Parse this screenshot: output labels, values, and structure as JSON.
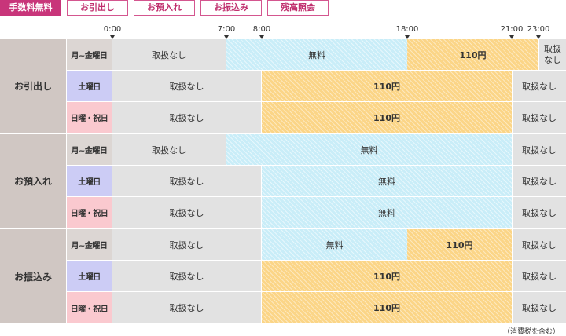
{
  "tabs": [
    {
      "label": "手数料無料",
      "active": true
    },
    {
      "label": "お引出し",
      "active": false
    },
    {
      "label": "お預入れ",
      "active": false
    },
    {
      "label": "お振込み",
      "active": false
    },
    {
      "label": "残高照会",
      "active": false
    }
  ],
  "timeline": [
    "0:00",
    "7:00",
    "8:00",
    "18:00",
    "21:00",
    "23:00"
  ],
  "groups": [
    {
      "label": "お引出し",
      "rows": [
        {
          "day": "月~金曜日",
          "type": "weekday",
          "segments": [
            {
              "text": "取扱なし",
              "kind": "none"
            },
            {
              "text": "無料",
              "kind": "free"
            },
            {
              "text": "110円",
              "kind": "fee"
            },
            {
              "text": "取扱なし",
              "kind": "none"
            }
          ]
        },
        {
          "day": "土曜日",
          "type": "sat",
          "segments": [
            {
              "text": "取扱なし",
              "kind": "none"
            },
            {
              "text": "110円",
              "kind": "fee"
            },
            {
              "text": "取扱なし",
              "kind": "none"
            }
          ]
        },
        {
          "day": "日曜・祝日",
          "type": "hol",
          "segments": [
            {
              "text": "取扱なし",
              "kind": "none"
            },
            {
              "text": "110円",
              "kind": "fee"
            },
            {
              "text": "取扱なし",
              "kind": "none"
            }
          ]
        }
      ]
    },
    {
      "label": "お預入れ",
      "rows": [
        {
          "day": "月~金曜日",
          "type": "weekday",
          "segments": [
            {
              "text": "取扱なし",
              "kind": "none"
            },
            {
              "text": "無料",
              "kind": "free"
            },
            {
              "text": "取扱なし",
              "kind": "none"
            }
          ]
        },
        {
          "day": "土曜日",
          "type": "sat",
          "segments": [
            {
              "text": "取扱なし",
              "kind": "none"
            },
            {
              "text": "無料",
              "kind": "free"
            },
            {
              "text": "取扱なし",
              "kind": "none"
            }
          ]
        },
        {
          "day": "日曜・祝日",
          "type": "hol",
          "segments": [
            {
              "text": "取扱なし",
              "kind": "none"
            },
            {
              "text": "無料",
              "kind": "free"
            },
            {
              "text": "取扱なし",
              "kind": "none"
            }
          ]
        }
      ]
    },
    {
      "label": "お振込み",
      "rows": [
        {
          "day": "月~金曜日",
          "type": "weekday",
          "segments": [
            {
              "text": "取扱なし",
              "kind": "none"
            },
            {
              "text": "無料",
              "kind": "free"
            },
            {
              "text": "110円",
              "kind": "fee"
            },
            {
              "text": "取扱なし",
              "kind": "none"
            }
          ]
        },
        {
          "day": "土曜日",
          "type": "sat",
          "segments": [
            {
              "text": "取扱なし",
              "kind": "none"
            },
            {
              "text": "110円",
              "kind": "fee"
            },
            {
              "text": "取扱なし",
              "kind": "none"
            }
          ]
        },
        {
          "day": "日曜・祝日",
          "type": "hol",
          "segments": [
            {
              "text": "取扱なし",
              "kind": "none"
            },
            {
              "text": "110円",
              "kind": "fee"
            },
            {
              "text": "取扱なし",
              "kind": "none"
            }
          ]
        }
      ]
    }
  ],
  "note": "（消費税を含む）",
  "colors": {
    "accent": "#c8357a",
    "free": "#c9edf8",
    "fee": "#fbd587",
    "none": "#e2e2e2"
  }
}
